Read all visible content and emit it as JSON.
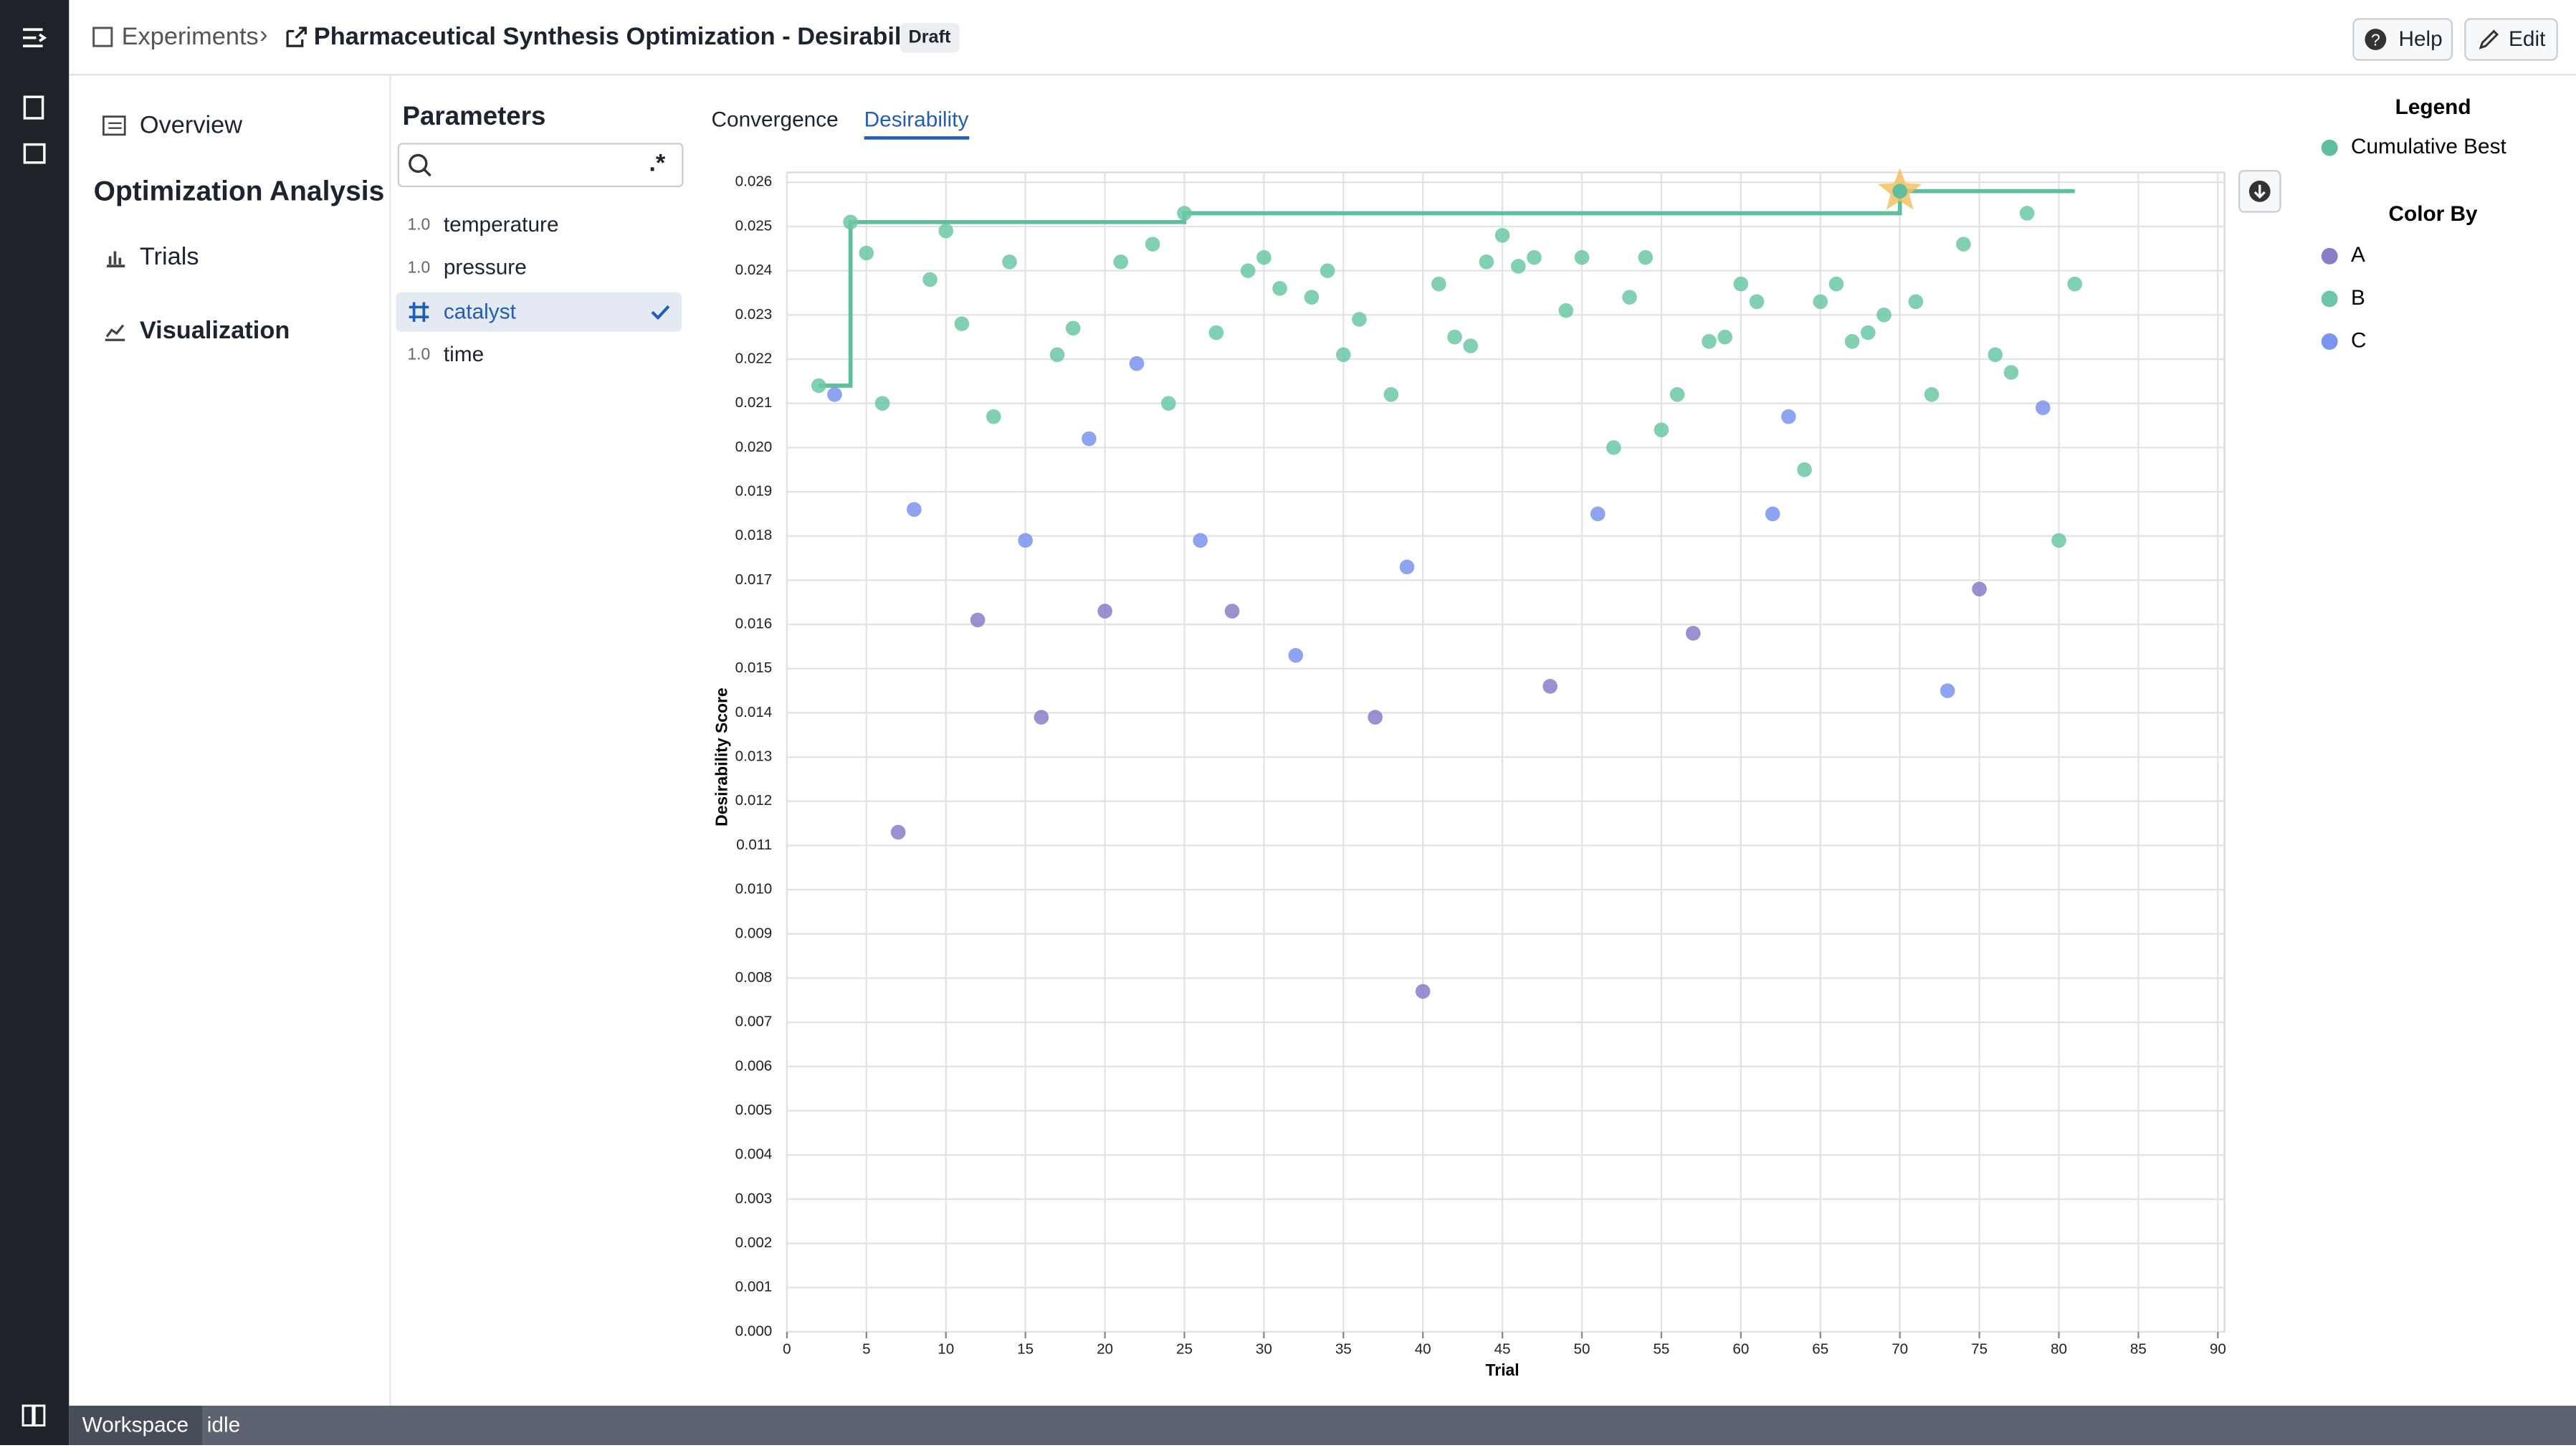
{
  "breadcrumb": {
    "root": "Experiments",
    "title": "Pharmaceutical Synthesis Optimization - Desirability",
    "badge": "Draft"
  },
  "toolbar": {
    "help": "Help",
    "edit": "Edit"
  },
  "nav": {
    "overview": "Overview",
    "section": "Optimization Analysis",
    "items": [
      "Trials",
      "Visualization"
    ]
  },
  "parameters": {
    "title": "Parameters",
    "search_hint": ".*",
    "items": [
      {
        "kind": "1.0",
        "name": "temperature"
      },
      {
        "kind": "1.0",
        "name": "pressure"
      },
      {
        "name": "catalyst"
      },
      {
        "kind": "1.0",
        "name": "time"
      }
    ]
  },
  "tabs": [
    "Convergence",
    "Desirability"
  ],
  "status": {
    "workspace": "Workspace",
    "state": "idle"
  },
  "chart_data": {
    "type": "scatter",
    "x_label": "Trial",
    "y_label": "Desirability Score",
    "legend_title": "Legend",
    "color_by_title": "Color By",
    "legend": "right",
    "grid": true,
    "xlim": [
      0,
      90
    ],
    "ylim": [
      0,
      0.026
    ],
    "xticks": [
      0,
      5,
      10,
      15,
      20,
      25,
      30,
      35,
      40,
      45,
      50,
      55,
      60,
      65,
      70,
      75,
      80,
      85,
      90
    ],
    "yticks": [
      {
        "value": 0,
        "label": "0.000"
      },
      0.001,
      0.002,
      0.003,
      0.004,
      0.005,
      0.006,
      0.007,
      0.008,
      0.009,
      {
        "value": 0.01,
        "label": "0.010"
      },
      0.011,
      0.012,
      0.013,
      0.014,
      0.015,
      0.016,
      0.017,
      0.018,
      0.019,
      {
        "value": 0.02,
        "label": "0.020"
      },
      0.021,
      0.022,
      0.023,
      0.024,
      0.025,
      0.026
    ],
    "cumulative_best": {
      "name": "Cumulative Best",
      "color": "#5fbf9c",
      "x": [
        2,
        4,
        25,
        70,
        81
      ],
      "values": [
        0.0214,
        0.0251,
        0.0253,
        0.0258,
        0.0258
      ]
    },
    "series": [
      {
        "name": "A",
        "color": "#8a7cc8",
        "x": [
          7,
          12,
          16,
          20,
          28,
          37,
          40,
          48,
          57,
          75
        ],
        "values": [
          0.0113,
          0.0161,
          0.0139,
          0.0163,
          0.0163,
          0.0139,
          0.0077,
          0.0146,
          0.0158,
          0.0168
        ]
      },
      {
        "name": "B",
        "color": "#6cc8a4",
        "x": [
          2,
          4,
          5,
          6,
          9,
          10,
          11,
          13,
          14,
          17,
          18,
          21,
          23,
          24,
          25,
          27,
          29,
          30,
          31,
          33,
          34,
          35,
          36,
          38,
          41,
          42,
          43,
          44,
          45,
          46,
          47,
          49,
          50,
          52,
          53,
          54,
          55,
          56,
          58,
          59,
          60,
          61,
          64,
          65,
          66,
          67,
          68,
          69,
          70,
          71,
          72,
          74,
          76,
          77,
          78,
          80,
          81
        ],
        "values": [
          0.0214,
          0.0251,
          0.0244,
          0.021,
          0.0238,
          0.0249,
          0.0228,
          0.0207,
          0.0242,
          0.0221,
          0.0227,
          0.0242,
          0.0246,
          0.021,
          0.0253,
          0.0226,
          0.024,
          0.0243,
          0.0236,
          0.0234,
          0.024,
          0.0221,
          0.0229,
          0.0212,
          0.0237,
          0.0225,
          0.0223,
          0.0242,
          0.0248,
          0.0241,
          0.0243,
          0.0231,
          0.0243,
          0.02,
          0.0234,
          0.0243,
          0.0204,
          0.0212,
          0.0224,
          0.0225,
          0.0237,
          0.0233,
          0.0195,
          0.0233,
          0.0237,
          0.0224,
          0.0226,
          0.023,
          0.0258,
          0.0233,
          0.0212,
          0.0246,
          0.0221,
          0.0217,
          0.0253,
          0.0179,
          0.0237
        ]
      },
      {
        "name": "C",
        "color": "#7b94ee",
        "x": [
          3,
          8,
          15,
          19,
          22,
          26,
          32,
          39,
          51,
          62,
          63,
          73,
          79
        ],
        "values": [
          0.0212,
          0.0186,
          0.0179,
          0.0202,
          0.0219,
          0.0179,
          0.0153,
          0.0173,
          0.0185,
          0.0185,
          0.0207,
          0.0145,
          0.0209
        ]
      }
    ]
  }
}
